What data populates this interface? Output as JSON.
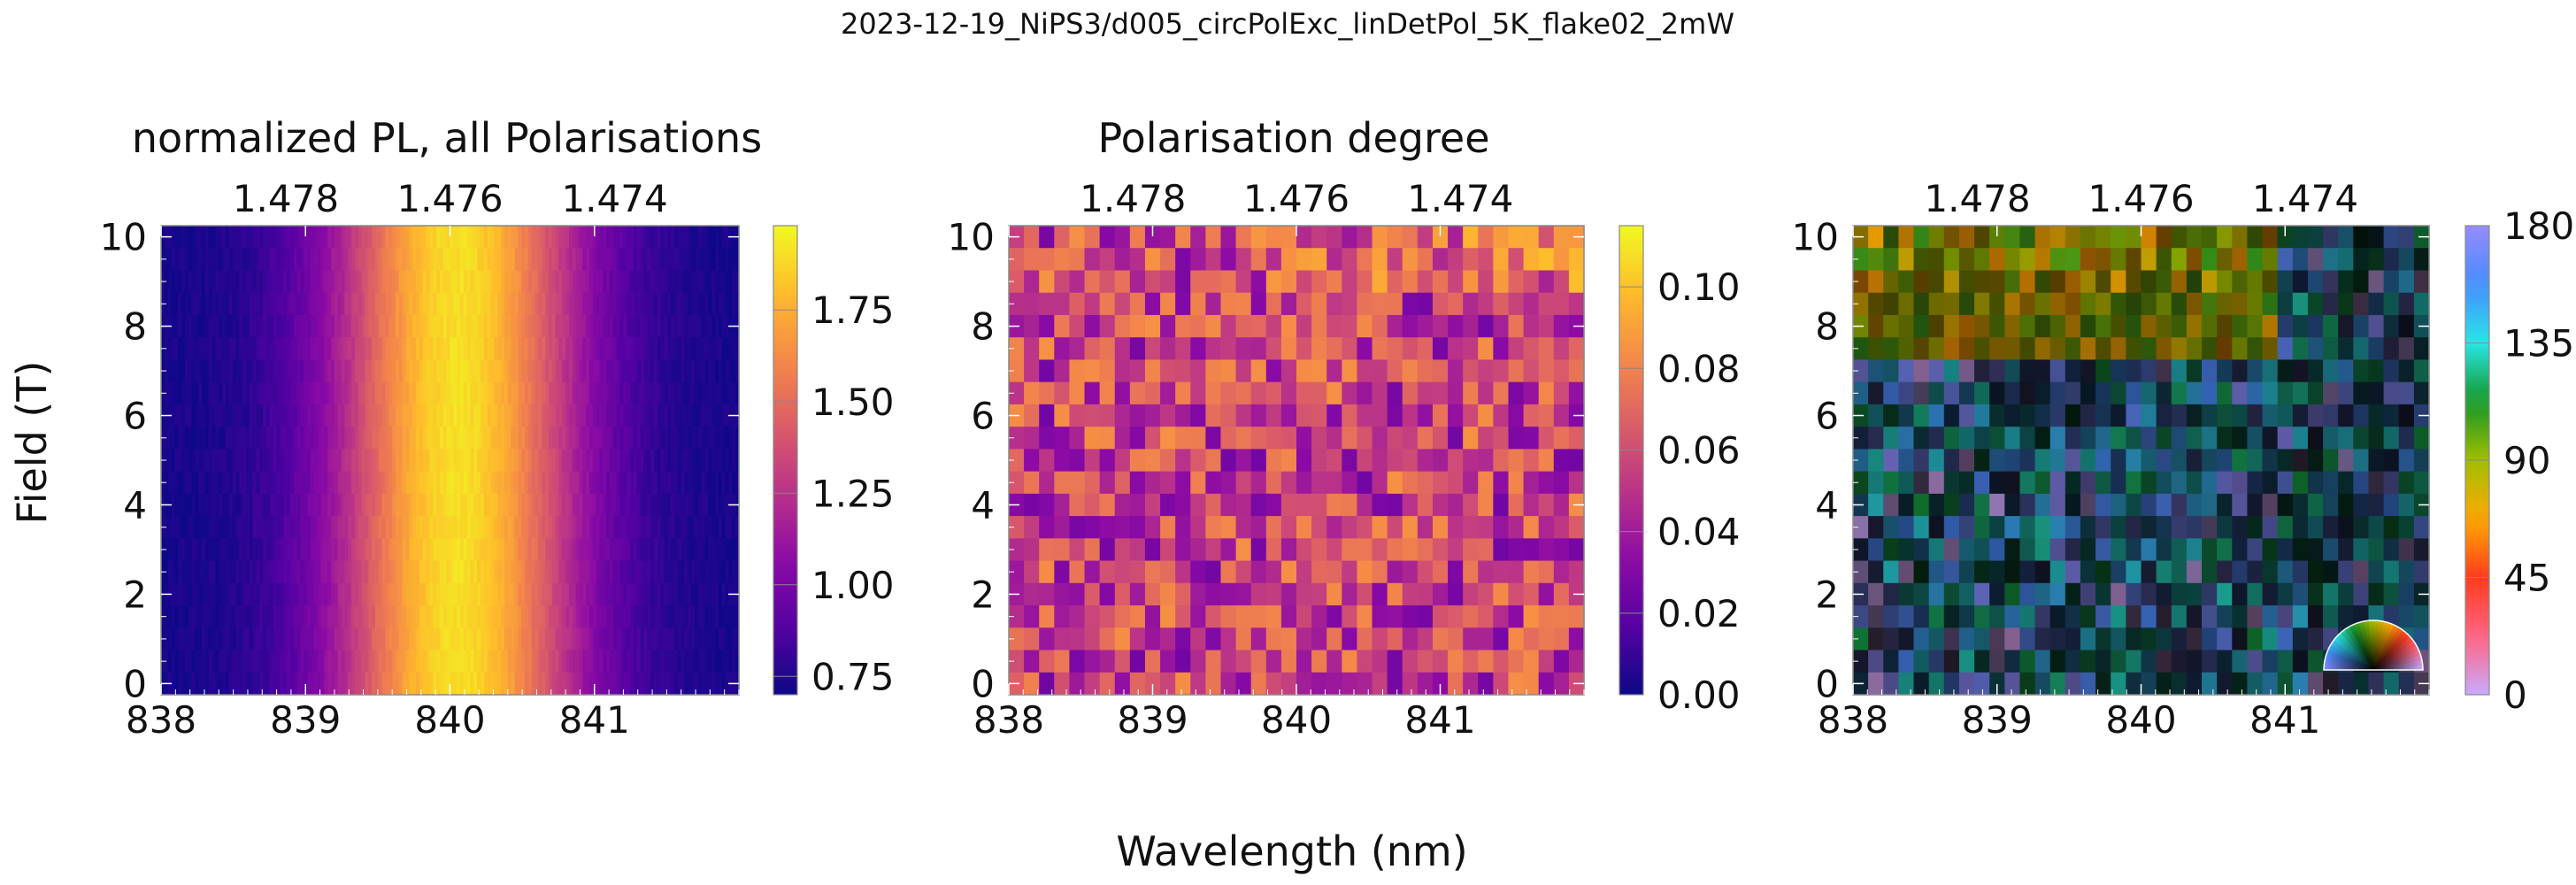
{
  "figure": {
    "suptitle": "2023-12-19_NiPS3/d005_circPolExc_linDetPol_5K_flake02_2mW",
    "xlabel": "Wavelength (nm)",
    "ylabel": "Field (T)"
  },
  "chart_data": [
    {
      "type": "heatmap",
      "title": "normalized PL, all Polarisations",
      "xlim": [
        838.0,
        842.0
      ],
      "ylim": [
        -0.25,
        10.25
      ],
      "xticks": [
        "838",
        "839",
        "840",
        "841"
      ],
      "top_xticks": [
        "1.478",
        "1.476",
        "1.474"
      ],
      "yticks": [
        "0",
        "2",
        "4",
        "6",
        "8",
        "10"
      ],
      "colormap": "plasma",
      "colorbar": {
        "range": [
          0.7,
          1.98
        ],
        "ticks": [
          "0.75",
          "1.00",
          "1.25",
          "1.50",
          "1.75"
        ]
      },
      "profile": {
        "peak_wavelength": 840.05,
        "peak_value": 1.9,
        "fwhm_nm": 1.4,
        "baseline": 0.72
      }
    },
    {
      "type": "heatmap",
      "title": "Polarisation degree",
      "xlim": [
        838.0,
        842.0
      ],
      "ylim": [
        -0.25,
        10.25
      ],
      "xticks": [
        "838",
        "839",
        "840",
        "841"
      ],
      "top_xticks": [
        "1.478",
        "1.476",
        "1.474"
      ],
      "yticks": [
        "0",
        "2",
        "4",
        "6",
        "8",
        "10"
      ],
      "colormap": "plasma",
      "colorbar": {
        "range": [
          0.0,
          0.115
        ],
        "ticks": [
          "0.00",
          "0.02",
          "0.04",
          "0.06",
          "0.08",
          "0.10"
        ]
      }
    },
    {
      "type": "heatmap",
      "title": "",
      "xlim": [
        838.0,
        842.0
      ],
      "ylim": [
        -0.25,
        10.25
      ],
      "xticks": [
        "838",
        "839",
        "840",
        "841"
      ],
      "top_xticks": [
        "1.478",
        "1.476",
        "1.474"
      ],
      "yticks": [
        "0",
        "2",
        "4",
        "6",
        "8",
        "10"
      ],
      "colormap": "hue",
      "colorbar": {
        "range": [
          0,
          180
        ],
        "ticks": [
          "0",
          "45",
          "90",
          "135",
          "180"
        ]
      },
      "inset": "polarisation-angle-color-wheel"
    }
  ]
}
